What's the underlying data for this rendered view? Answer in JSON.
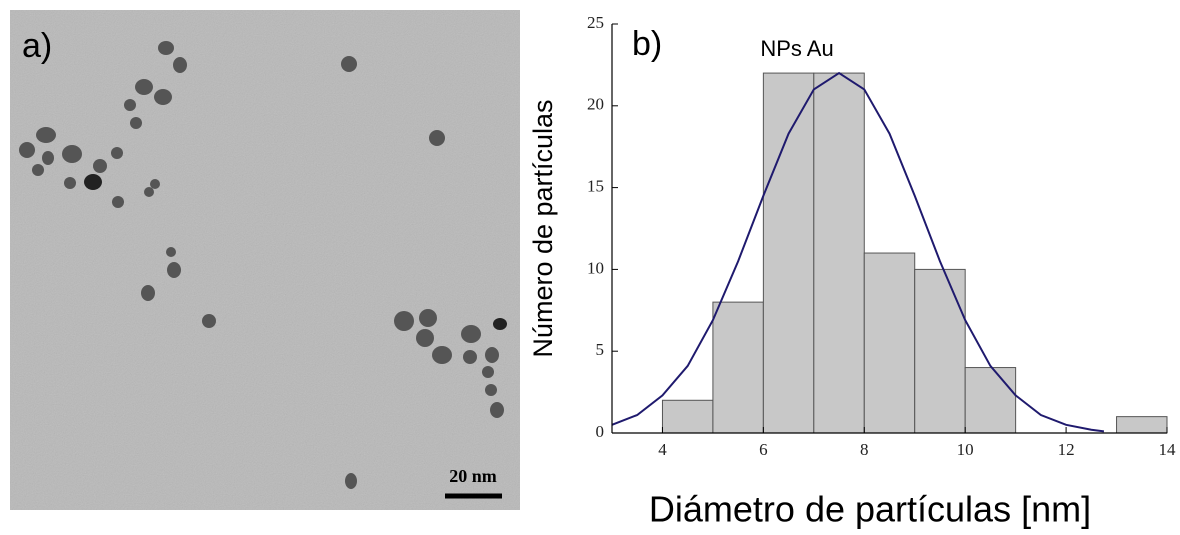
{
  "panel_a": {
    "label": "a)",
    "scale_bar": "20 nm"
  },
  "chart_data": {
    "type": "histogram",
    "panel_label": "b)",
    "annotation": "NPs Au",
    "x_label": "Diámetro de partículas [nm]",
    "y_label": "Número de partículas",
    "bins": [
      4,
      5,
      6,
      7,
      8,
      9,
      10,
      11,
      12,
      13,
      14
    ],
    "values": [
      2,
      8,
      22,
      22,
      11,
      10,
      4,
      0,
      0,
      1
    ],
    "color": "#c8c8c8",
    "fit": {
      "color": "#1f1a6e",
      "x": [
        3,
        3.5,
        4,
        4.5,
        5,
        5.5,
        6,
        6.5,
        7,
        7.5,
        8,
        8.5,
        9,
        9.5,
        10,
        10.5,
        11,
        11.5,
        12,
        12.5,
        12.75
      ],
      "values": [
        0.5,
        1.1,
        2.3,
        4.1,
        6.9,
        10.5,
        14.5,
        18.3,
        21,
        22,
        21,
        18.3,
        14.5,
        10.5,
        6.9,
        4.1,
        2.3,
        1.1,
        0.5,
        0.2,
        0.1
      ]
    },
    "xlim": [
      3,
      14
    ],
    "xticks": [
      4,
      6,
      8,
      10,
      12,
      14
    ],
    "ylim": [
      0,
      25
    ],
    "yticks": [
      0,
      5,
      10,
      15,
      20,
      25
    ]
  }
}
